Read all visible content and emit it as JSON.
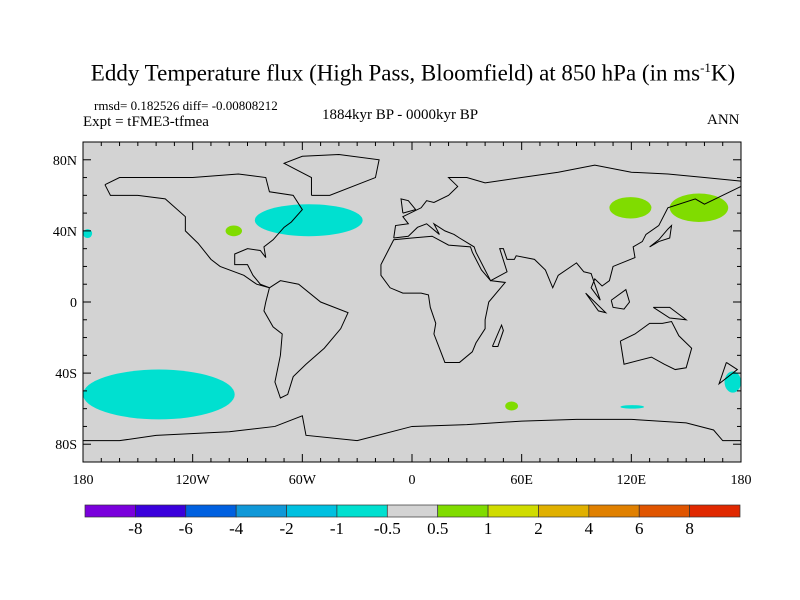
{
  "title": {
    "main": "Eddy Temperature flux (High Pass, Bloomfield) at 850 hPa (in ms",
    "sup": "-1",
    "tail": "K)"
  },
  "stats": "rmsd= 0.182526 diff= -0.00808212",
  "experiment": "Expt = tFME3-tfmea",
  "period": "1884kyr BP - 0000kyr BP",
  "season": "ANN",
  "chart_data": {
    "type": "map",
    "projection": "cylindrical-equidistant",
    "lon_range": [
      -180,
      180
    ],
    "lat_range": [
      -90,
      90
    ],
    "x_ticks": [
      "180",
      "120W",
      "60W",
      "0",
      "60E",
      "120E",
      "180"
    ],
    "x_tick_values": [
      -180,
      -120,
      -60,
      0,
      60,
      120,
      180
    ],
    "y_ticks": [
      "80N",
      "40N",
      "0",
      "40S",
      "80S"
    ],
    "y_tick_values": [
      80,
      40,
      0,
      -40,
      -80
    ],
    "background_color": "#d3d3d3",
    "colorbar": {
      "labels": [
        "-8",
        "-6",
        "-4",
        "-2",
        "-1",
        "-0.5",
        "0.5",
        "1",
        "2",
        "4",
        "6",
        "8"
      ],
      "colors": [
        "#7a00dc",
        "#3a00dc",
        "#0060e0",
        "#1098d8",
        "#00c0e0",
        "#00e0d0",
        "#d3d3d3",
        "#80dc00",
        "#d0dc00",
        "#e0b000",
        "#e08000",
        "#e05500",
        "#e02800"
      ]
    },
    "regions": [
      {
        "label": "NW Atlantic",
        "bin": "-1 to -0.5",
        "color": "#00e0d0",
        "lon": [
          -86,
          -27
        ],
        "lat": [
          37,
          55
        ]
      },
      {
        "label": "South Pacific",
        "bin": "-1 to -0.5",
        "color": "#00e0d0",
        "lon": [
          -180,
          -97
        ],
        "lat": [
          -66,
          -38
        ]
      },
      {
        "label": "SW Pacific edge",
        "bin": "-1 to -0.5",
        "color": "#00e0d0",
        "lon": [
          171,
          180
        ],
        "lat": [
          -51,
          -39
        ]
      },
      {
        "label": "NE Pacific edge",
        "bin": "-1 to -0.5",
        "color": "#00e0d0",
        "lon": [
          -180,
          -175
        ],
        "lat": [
          36,
          41
        ]
      },
      {
        "label": "Southern Ocean",
        "bin": "-1 to -0.5",
        "color": "#00e0d0",
        "lon": [
          114,
          127
        ],
        "lat": [
          -60,
          -58
        ]
      },
      {
        "label": "Siberia",
        "bin": "0.5 to 1",
        "color": "#80dc00",
        "lon": [
          108,
          131
        ],
        "lat": [
          47,
          59
        ]
      },
      {
        "label": "NW Pacific",
        "bin": "0.5 to 1",
        "color": "#80dc00",
        "lon": [
          141,
          173
        ],
        "lat": [
          45,
          61
        ]
      },
      {
        "label": "Great Plains",
        "bin": "0.5 to 1",
        "color": "#80dc00",
        "lon": [
          -102,
          -93
        ],
        "lat": [
          37,
          43
        ]
      },
      {
        "label": "S Indian Ocean",
        "bin": "0.5 to 1",
        "color": "#80dc00",
        "lon": [
          51,
          58
        ],
        "lat": [
          -61,
          -56
        ]
      }
    ]
  }
}
